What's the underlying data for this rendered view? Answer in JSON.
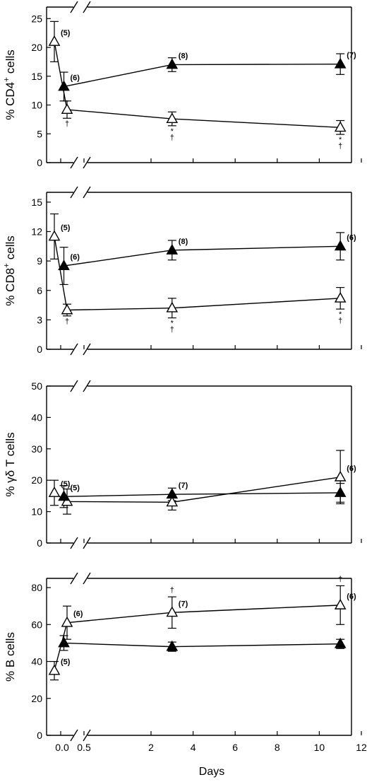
{
  "figure": {
    "xlabel": "Days",
    "x_tick_labels": [
      "0.0",
      "0.5",
      "2",
      "4",
      "6",
      "8",
      "10",
      "12"
    ],
    "x_range": [
      0,
      12
    ],
    "axis_break": "broken x-axis between 0.0 and 0.5 (double slash marks)",
    "symbols": {
      "open_triangle": "open-triangle (hollow)",
      "filled_triangle": "filled-triangle (solid black)"
    }
  },
  "chart_data": [
    {
      "type": "line",
      "ylabel_main": "% CD4",
      "ylabel_sup": "+",
      "ylabel_rest": " cells",
      "ylim": [
        0,
        27
      ],
      "y_ticks": [
        0,
        5,
        10,
        15,
        20,
        25
      ],
      "series": [
        {
          "symbol": "open-triangle",
          "points": [
            {
              "x": -0.2,
              "y": 21,
              "err": 3.5,
              "n": "(5)",
              "sig": ""
            },
            {
              "x": 0.2,
              "y": 9.2,
              "err": 1.5,
              "n": "",
              "sig": "†"
            },
            {
              "x": 3,
              "y": 7.6,
              "err": 1.2,
              "n": "",
              "sig": "*†"
            },
            {
              "x": 11,
              "y": 6.1,
              "err": 1.2,
              "n": "",
              "sig": "*†"
            }
          ]
        },
        {
          "symbol": "filled-triangle",
          "points": [
            {
              "x": 0.1,
              "y": 13.2,
              "err": 2.5,
              "n": "(6)",
              "sig": ""
            },
            {
              "x": 3,
              "y": 17,
              "err": 1.2,
              "n": "(8)",
              "sig": ""
            },
            {
              "x": 11,
              "y": 17.1,
              "err": 1.8,
              "n": "(7)",
              "sig": ""
            }
          ]
        }
      ]
    },
    {
      "type": "line",
      "ylabel_main": "% CD8",
      "ylabel_sup": "+",
      "ylabel_rest": " cells",
      "ylim": [
        0,
        16
      ],
      "y_ticks": [
        0,
        3,
        6,
        9,
        12,
        15
      ],
      "series": [
        {
          "symbol": "open-triangle",
          "points": [
            {
              "x": -0.2,
              "y": 11.5,
              "err": 2.3,
              "n": "(5)",
              "sig": ""
            },
            {
              "x": 0.2,
              "y": 4,
              "err": 0.6,
              "n": "",
              "sig": "†"
            },
            {
              "x": 3,
              "y": 4.2,
              "err": 1,
              "n": "",
              "sig": "*†"
            },
            {
              "x": 11,
              "y": 5.2,
              "err": 1.1,
              "n": "",
              "sig": "*†"
            }
          ]
        },
        {
          "symbol": "filled-triangle",
          "points": [
            {
              "x": 0.1,
              "y": 8.5,
              "err": 1.9,
              "n": "(6)",
              "sig": ""
            },
            {
              "x": 3,
              "y": 10.1,
              "err": 1,
              "n": "(8)",
              "sig": ""
            },
            {
              "x": 11,
              "y": 10.5,
              "err": 1.4,
              "n": "(6)",
              "sig": ""
            }
          ]
        }
      ]
    },
    {
      "type": "line",
      "ylabel_main": "% γδ T cells",
      "ylabel_sup": "",
      "ylabel_rest": "",
      "ylim": [
        0,
        50
      ],
      "y_ticks": [
        0,
        10,
        20,
        30,
        40,
        50
      ],
      "series": [
        {
          "symbol": "open-triangle",
          "points": [
            {
              "x": -0.2,
              "y": 16,
              "err": 4,
              "n": "(5)",
              "sig": ""
            },
            {
              "x": 0.2,
              "y": 13.2,
              "err": 4,
              "n": "",
              "sig": ""
            },
            {
              "x": 3,
              "y": 13,
              "err": 2.5,
              "n": "",
              "sig": ""
            },
            {
              "x": 11,
              "y": 21,
              "err": 8.5,
              "n": "(6)",
              "sig": ""
            }
          ]
        },
        {
          "symbol": "filled-triangle",
          "points": [
            {
              "x": 0.1,
              "y": 14.8,
              "err": 3.5,
              "n": "(5)",
              "sig": ""
            },
            {
              "x": 3,
              "y": 15.5,
              "err": 2,
              "n": "(7)",
              "sig": ""
            },
            {
              "x": 11,
              "y": 16,
              "err": 3,
              "n": "",
              "sig": ""
            }
          ]
        }
      ]
    },
    {
      "type": "line",
      "ylabel_main": "% B cells",
      "ylabel_sup": "",
      "ylabel_rest": "",
      "ylim": [
        0,
        85
      ],
      "y_ticks": [
        0,
        20,
        40,
        60,
        80
      ],
      "series": [
        {
          "symbol": "open-triangle",
          "points": [
            {
              "x": -0.2,
              "y": 35,
              "err": 5,
              "n": "(5)",
              "sig": ""
            },
            {
              "x": 0.2,
              "y": 61,
              "err": 9,
              "n": "(6)",
              "sig": ""
            },
            {
              "x": 3,
              "y": 66.5,
              "err": 8.5,
              "n": "(7)",
              "sig": "†"
            },
            {
              "x": 11,
              "y": 70.5,
              "err": 10.5,
              "n": "(6)",
              "sig": "†"
            }
          ]
        },
        {
          "symbol": "filled-triangle",
          "points": [
            {
              "x": 0.1,
              "y": 50,
              "err": 4,
              "n": "",
              "sig": ""
            },
            {
              "x": 3,
              "y": 48,
              "err": 2.5,
              "n": "",
              "sig": ""
            },
            {
              "x": 11,
              "y": 49.5,
              "err": 2.5,
              "n": "",
              "sig": ""
            }
          ]
        }
      ]
    }
  ]
}
